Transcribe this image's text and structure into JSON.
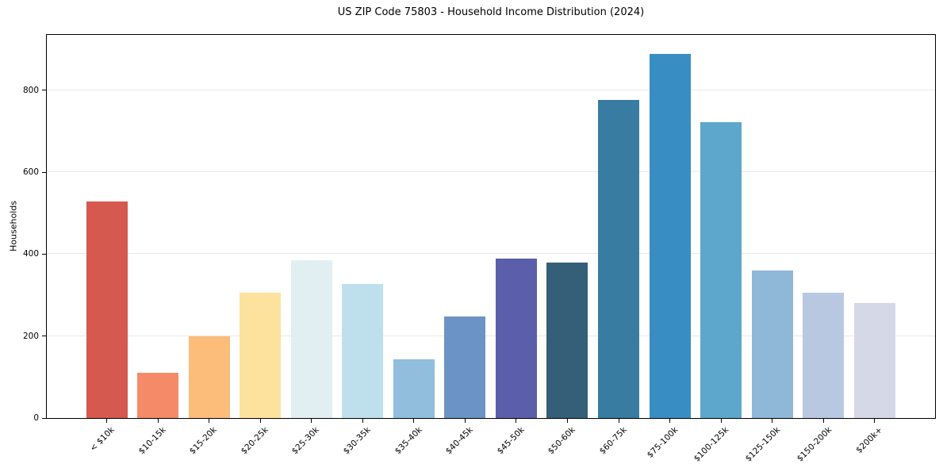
{
  "chart_data": {
    "type": "bar",
    "title": "US ZIP Code 75803 - Household Income Distribution (2024)",
    "xlabel": "",
    "ylabel": "Households",
    "categories": [
      "< $10k",
      "$10-15k",
      "$15-20k",
      "$20-25k",
      "$25-30k",
      "$30-35k",
      "$35-40k",
      "$40-45k",
      "$45-50k",
      "$50-60k",
      "$60-75k",
      "$75-100k",
      "$100-125k",
      "$125-150k",
      "$150-200k",
      "$200k+"
    ],
    "values": [
      528,
      110,
      200,
      305,
      385,
      327,
      143,
      248,
      389,
      380,
      777,
      888,
      723,
      361,
      306,
      280
    ],
    "bar_colors": [
      "#d5594f",
      "#f58a68",
      "#fcbc7a",
      "#fde29e",
      "#e1eff2",
      "#bee0ec",
      "#91bedc",
      "#6c93c5",
      "#5a5eab",
      "#355f79",
      "#387ca2",
      "#388ec3",
      "#5ea7cc",
      "#8fb7d7",
      "#b8c8e1",
      "#d5d8e7"
    ],
    "yticks": [
      0,
      200,
      400,
      600,
      800
    ],
    "ytick_labels": [
      "0",
      "200",
      "400",
      "600",
      "800"
    ],
    "ylim": [
      0,
      935
    ],
    "grid": "horizontal",
    "gridline_color": "#e8e8e8",
    "axis_color": "#000000",
    "background_color": "#ffffff",
    "x_tick_rotation_deg": 45,
    "legend": "none"
  }
}
